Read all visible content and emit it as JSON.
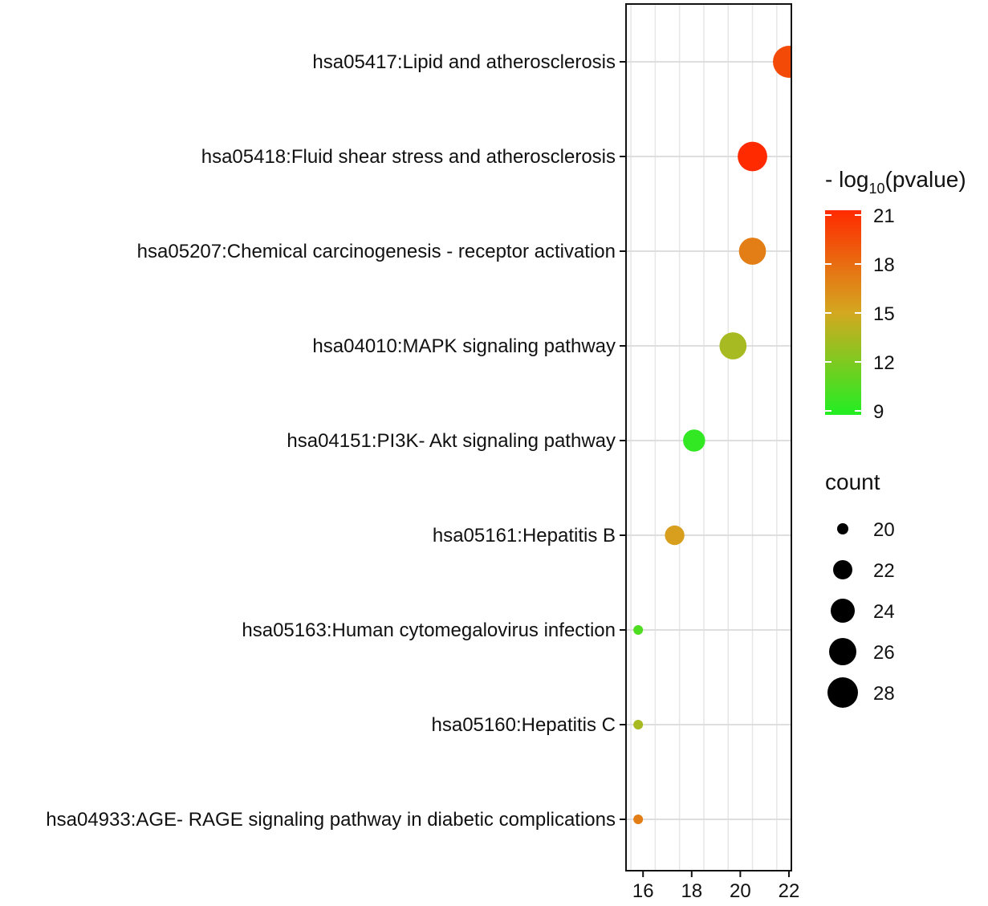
{
  "chart_data": {
    "type": "scatter",
    "title": "",
    "xlabel": "",
    "ylabel": "",
    "xlim": [
      15.3,
      22.1
    ],
    "xticks": [
      16,
      18,
      20,
      22
    ],
    "grid": true,
    "categories": [
      "hsa05417:Lipid and atherosclerosis",
      "hsa05418:Fluid shear stress and atherosclerosis",
      "hsa05207:Chemical carcinogenesis -  receptor activation",
      "hsa04010:MAPK signaling pathway",
      "hsa04151:PI3K- Akt signaling pathway",
      "hsa05161:Hepatitis B",
      "hsa05163:Human cytomegalovirus infection",
      "hsa05160:Hepatitis C",
      "hsa04933:AGE- RAGE signaling pathway in diabetic complications"
    ],
    "points": [
      {
        "x": 22.0,
        "count": 28,
        "neglog10p": 19.5
      },
      {
        "x": 20.5,
        "count": 27,
        "neglog10p": 21.0
      },
      {
        "x": 20.5,
        "count": 26,
        "neglog10p": 17.0
      },
      {
        "x": 19.7,
        "count": 26,
        "neglog10p": 13.5
      },
      {
        "x": 18.1,
        "count": 24,
        "neglog10p": 9.5
      },
      {
        "x": 17.3,
        "count": 23,
        "neglog10p": 15.5
      },
      {
        "x": 15.8,
        "count": 19,
        "neglog10p": 10.5
      },
      {
        "x": 15.8,
        "count": 19,
        "neglog10p": 13.5
      },
      {
        "x": 15.8,
        "count": 19,
        "neglog10p": 17.0
      }
    ],
    "color_legend": {
      "title_prefix": "- log",
      "title_subscript": "10",
      "title_suffix": "(pvalue)",
      "min": 9,
      "max": 21,
      "ticks": [
        "21",
        "18",
        "15",
        "12",
        "9"
      ],
      "low_color": "#22ee22",
      "mid_color": "#d4a820",
      "high_color": "#ff2a00"
    },
    "size_legend": {
      "title": "count",
      "values": [
        20,
        22,
        24,
        26,
        28
      ],
      "labels": [
        "20",
        "22",
        "24",
        "26",
        "28"
      ]
    }
  }
}
